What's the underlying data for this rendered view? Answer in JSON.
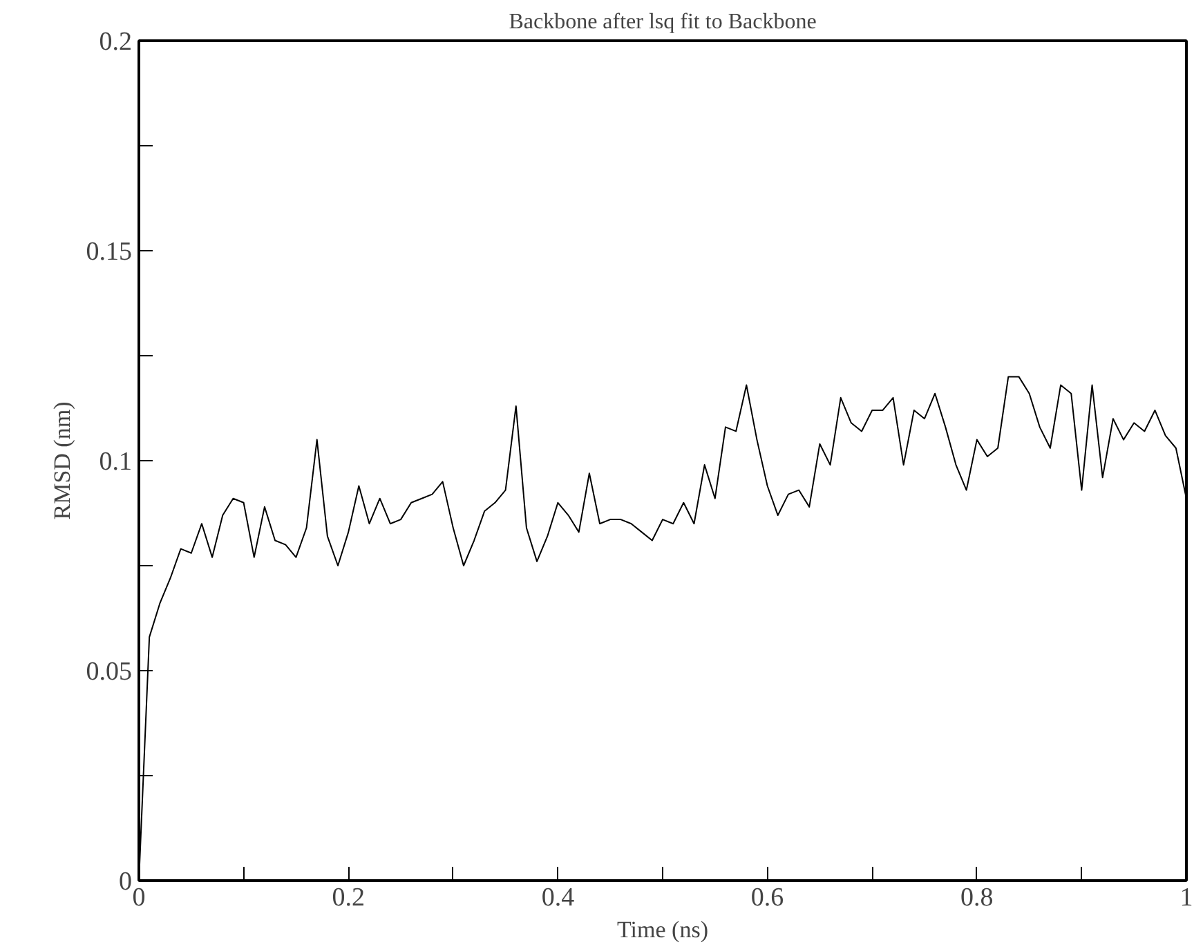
{
  "chart_data": {
    "type": "line",
    "title": "Backbone after lsq fit to Backbone",
    "xlabel": "Time (ns)",
    "ylabel": "RMSD (nm)",
    "x": [
      0,
      0.01,
      0.02,
      0.03,
      0.04,
      0.05,
      0.06,
      0.07,
      0.08,
      0.09,
      0.1,
      0.11,
      0.12,
      0.13,
      0.14,
      0.15,
      0.16,
      0.17,
      0.18,
      0.19,
      0.2,
      0.21,
      0.22,
      0.23,
      0.24,
      0.25,
      0.26,
      0.27,
      0.28,
      0.29,
      0.3,
      0.31,
      0.32,
      0.33,
      0.34,
      0.35,
      0.36,
      0.37,
      0.38,
      0.39,
      0.4,
      0.41,
      0.42,
      0.43,
      0.44,
      0.45,
      0.46,
      0.47,
      0.48,
      0.49,
      0.5,
      0.51,
      0.52,
      0.53,
      0.54,
      0.55,
      0.56,
      0.57,
      0.58,
      0.59,
      0.6,
      0.61,
      0.62,
      0.63,
      0.64,
      0.65,
      0.66,
      0.67,
      0.68,
      0.69,
      0.7,
      0.71,
      0.72,
      0.73,
      0.74,
      0.75,
      0.76,
      0.77,
      0.78,
      0.79,
      0.8,
      0.81,
      0.82,
      0.83,
      0.84,
      0.85,
      0.86,
      0.87,
      0.88,
      0.89,
      0.9,
      0.91,
      0.92,
      0.93,
      0.94,
      0.95,
      0.96,
      0.97,
      0.98,
      0.99,
      1.0
    ],
    "series": [
      {
        "color": "#000000",
        "values": [
          0.0,
          0.058,
          0.066,
          0.072,
          0.079,
          0.078,
          0.085,
          0.077,
          0.087,
          0.091,
          0.09,
          0.077,
          0.089,
          0.081,
          0.08,
          0.077,
          0.084,
          0.105,
          0.082,
          0.075,
          0.083,
          0.094,
          0.085,
          0.091,
          0.085,
          0.086,
          0.09,
          0.091,
          0.092,
          0.095,
          0.084,
          0.075,
          0.081,
          0.088,
          0.09,
          0.093,
          0.113,
          0.084,
          0.076,
          0.082,
          0.09,
          0.087,
          0.083,
          0.097,
          0.085,
          0.086,
          0.086,
          0.085,
          0.083,
          0.081,
          0.086,
          0.085,
          0.09,
          0.085,
          0.099,
          0.091,
          0.108,
          0.107,
          0.118,
          0.105,
          0.094,
          0.087,
          0.092,
          0.093,
          0.089,
          0.104,
          0.099,
          0.115,
          0.109,
          0.107,
          0.112,
          0.112,
          0.115,
          0.099,
          0.112,
          0.11,
          0.116,
          0.108,
          0.099,
          0.093,
          0.105,
          0.101,
          0.103,
          0.12,
          0.12,
          0.116,
          0.108,
          0.103,
          0.118,
          0.116,
          0.093,
          0.118,
          0.096,
          0.11,
          0.105,
          0.109,
          0.107,
          0.112,
          0.106,
          0.103,
          0.091
        ]
      }
    ],
    "xlim": [
      0,
      1
    ],
    "ylim": [
      0,
      0.2
    ],
    "xticks": [
      0,
      {
        "value": 0.1,
        "label": null
      },
      0.2,
      {
        "value": 0.3,
        "label": null
      },
      0.4,
      {
        "value": 0.5,
        "label": null
      },
      0.6,
      {
        "value": 0.7,
        "label": null
      },
      0.8,
      {
        "value": 0.9,
        "label": null
      },
      1
    ],
    "yticks": [
      0,
      {
        "value": 0.025,
        "label": null
      },
      0.05,
      {
        "value": 0.075,
        "label": null
      },
      0.1,
      {
        "value": 0.125,
        "label": null
      },
      0.15,
      {
        "value": 0.175,
        "label": null
      },
      0.2
    ],
    "grid": false,
    "marker": "none",
    "line_style": "solid"
  }
}
